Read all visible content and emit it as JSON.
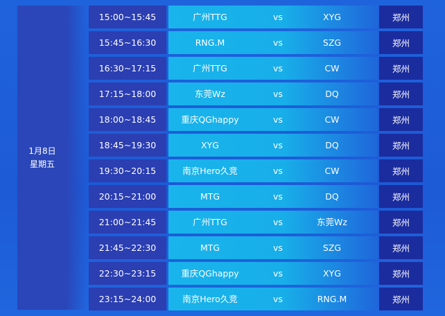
{
  "date": {
    "day": "1月8日",
    "weekday": "星期五"
  },
  "matches": [
    {
      "time": "15:00~15:45",
      "home": "广州TTG",
      "vs": "vs",
      "away": "XYG",
      "venue": "郑州"
    },
    {
      "time": "15:45~16:30",
      "home": "RNG.M",
      "vs": "vs",
      "away": "SZG",
      "venue": "郑州"
    },
    {
      "time": "16:30~17:15",
      "home": "广州TTG",
      "vs": "vs",
      "away": "CW",
      "venue": "郑州"
    },
    {
      "time": "17:15~18:00",
      "home": "东莞Wz",
      "vs": "vs",
      "away": "DQ",
      "venue": "郑州"
    },
    {
      "time": "18:00~18:45",
      "home": "重庆QGhappy",
      "vs": "vs",
      "away": "CW",
      "venue": "郑州"
    },
    {
      "time": "18:45~19:30",
      "home": "XYG",
      "vs": "vs",
      "away": "DQ",
      "venue": "郑州"
    },
    {
      "time": "19:30~20:15",
      "home": "南京Hero久竞",
      "vs": "vs",
      "away": "CW",
      "venue": "郑州"
    },
    {
      "time": "20:15~21:00",
      "home": "MTG",
      "vs": "vs",
      "away": "DQ",
      "venue": "郑州"
    },
    {
      "time": "21:00~21:45",
      "home": "广州TTG",
      "vs": "vs",
      "away": "东莞Wz",
      "venue": "郑州"
    },
    {
      "time": "21:45~22:30",
      "home": "MTG",
      "vs": "vs",
      "away": "SZG",
      "venue": "郑州"
    },
    {
      "time": "22:30~23:15",
      "home": "重庆QGhappy",
      "vs": "vs",
      "away": "XYG",
      "venue": "郑州"
    },
    {
      "time": "23:15~24:00",
      "home": "南京Hero久竞",
      "vs": "vs",
      "away": "RNG.M",
      "venue": "郑州"
    }
  ]
}
